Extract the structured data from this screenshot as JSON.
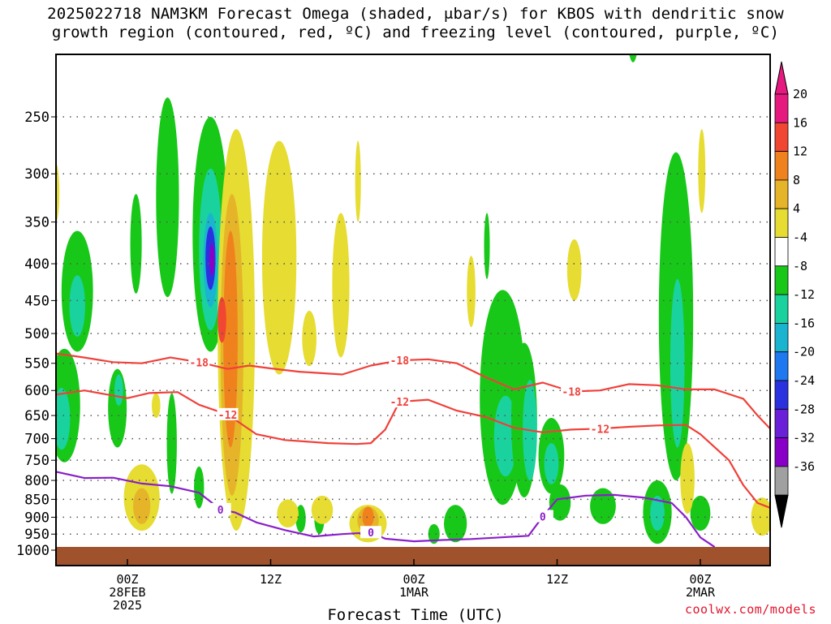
{
  "chart_data": {
    "type": "heatmap",
    "title_line1": "2025022718 NAM3KM Forecast Omega (shaded, μbar/s) for KBOS with dendritic snow",
    "title_line2": "growth region (contoured, red, ºC) and freezing level (contoured, purple, ºC)",
    "xlabel": "Forecast Time (UTC)",
    "credit": "coolwx.com/models",
    "y_axis": {
      "quantity": "pressure",
      "units": "hPa",
      "inverted": true,
      "ticks": [
        250,
        300,
        350,
        400,
        450,
        500,
        550,
        600,
        650,
        700,
        750,
        800,
        850,
        900,
        950,
        1000
      ]
    },
    "x_axis": {
      "range_hours": [
        -5,
        45
      ],
      "ticks": [
        {
          "hour": 0,
          "lines": [
            "00Z",
            "28FEB",
            "2025"
          ]
        },
        {
          "hour": 10,
          "lines": [
            "12Z"
          ]
        },
        {
          "hour": 20,
          "lines": [
            "00Z",
            "1MAR"
          ]
        },
        {
          "hour": 30,
          "lines": [
            "12Z"
          ]
        },
        {
          "hour": 40,
          "lines": [
            "00Z",
            "2MAR"
          ]
        }
      ]
    },
    "colorbar": {
      "levels": [
        -36,
        -32,
        -28,
        -24,
        -20,
        -16,
        -12,
        -8,
        -4,
        4,
        8,
        12,
        16,
        20
      ],
      "colors": [
        "#a0a0a0",
        "#8800c8",
        "#6a1fd8",
        "#2a32e0",
        "#1e78f0",
        "#1ab4d0",
        "#1ad29e",
        "#18c818",
        "#ffffff",
        "#e6dc32",
        "#e6b428",
        "#f0821e",
        "#f04632",
        "#e6197f"
      ]
    },
    "snow_growth_contours": [
      {
        "label": "-12",
        "points": [
          [
            -5,
            608
          ],
          [
            -3,
            600
          ],
          [
            0,
            615
          ],
          [
            1.5,
            605
          ],
          [
            3.5,
            603
          ],
          [
            5,
            628
          ],
          [
            7,
            648
          ],
          [
            9,
            690
          ],
          [
            11,
            703
          ],
          [
            14,
            710
          ],
          [
            16,
            712
          ],
          [
            17,
            710
          ],
          [
            18,
            680
          ],
          [
            19,
            622
          ],
          [
            21,
            618
          ],
          [
            23,
            640
          ],
          [
            25,
            653
          ],
          [
            27,
            676
          ],
          [
            29,
            686
          ],
          [
            31,
            680
          ],
          [
            33,
            678
          ],
          [
            35,
            674
          ],
          [
            37,
            671
          ],
          [
            39,
            670
          ],
          [
            40,
            690
          ],
          [
            42,
            750
          ],
          [
            43,
            812
          ],
          [
            44,
            860
          ],
          [
            45,
            875
          ]
        ]
      },
      {
        "label": "-18",
        "points": [
          [
            -5,
            533
          ],
          [
            -3,
            540
          ],
          [
            -1,
            548
          ],
          [
            1,
            550
          ],
          [
            3,
            540
          ],
          [
            5,
            548
          ],
          [
            7,
            560
          ],
          [
            8.5,
            554
          ],
          [
            10,
            559
          ],
          [
            12,
            565
          ],
          [
            15,
            570
          ],
          [
            17,
            554
          ],
          [
            19,
            545
          ],
          [
            21,
            543
          ],
          [
            23,
            550
          ],
          [
            25,
            575
          ],
          [
            27,
            598
          ],
          [
            29,
            585
          ],
          [
            31,
            602
          ],
          [
            33,
            600
          ],
          [
            35,
            588
          ],
          [
            37,
            590
          ],
          [
            39,
            598
          ],
          [
            41,
            598
          ],
          [
            43,
            616
          ],
          [
            44,
            650
          ],
          [
            45,
            682
          ]
        ]
      }
    ],
    "freezing_level_contour": {
      "label": "0",
      "points": [
        [
          -5,
          778
        ],
        [
          -3,
          794
        ],
        [
          -1,
          793
        ],
        [
          1,
          808
        ],
        [
          3,
          815
        ],
        [
          5,
          832
        ],
        [
          6.5,
          878
        ],
        [
          7.5,
          886
        ],
        [
          9,
          915
        ],
        [
          11,
          938
        ],
        [
          13,
          957
        ],
        [
          15,
          950
        ],
        [
          17,
          945
        ],
        [
          18,
          964
        ],
        [
          20,
          972
        ],
        [
          22,
          968
        ],
        [
          24,
          965
        ],
        [
          26,
          960
        ],
        [
          28,
          955
        ],
        [
          29,
          898
        ],
        [
          30,
          850
        ],
        [
          32,
          840
        ],
        [
          34,
          838
        ],
        [
          36,
          845
        ],
        [
          38,
          860
        ],
        [
          39,
          900
        ],
        [
          40,
          960
        ],
        [
          41,
          990
        ]
      ]
    },
    "omega_regions": [
      {
        "level": -8,
        "center": [
          -3.5,
          445
        ],
        "size": [
          2.2,
          170
        ]
      },
      {
        "level": -12,
        "center": [
          -3.5,
          460
        ],
        "size": [
          1.1,
          90
        ]
      },
      {
        "level": -8,
        "center": [
          -4.4,
          640
        ],
        "size": [
          2.2,
          230
        ]
      },
      {
        "level": -12,
        "center": [
          -4.6,
          660
        ],
        "size": [
          1.2,
          130
        ]
      },
      {
        "level": -8,
        "center": [
          -0.7,
          640
        ],
        "size": [
          1.3,
          160
        ]
      },
      {
        "level": -12,
        "center": [
          -0.6,
          600
        ],
        "size": [
          0.6,
          60
        ]
      },
      {
        "level": -8,
        "center": [
          0.6,
          380
        ],
        "size": [
          0.8,
          120
        ]
      },
      {
        "level": -8,
        "center": [
          2.8,
          340
        ],
        "size": [
          1.6,
          210
        ]
      },
      {
        "level": -8,
        "center": [
          5.8,
          390
        ],
        "size": [
          2.5,
          280
        ]
      },
      {
        "level": -12,
        "center": [
          5.8,
          395
        ],
        "size": [
          1.6,
          200
        ]
      },
      {
        "level": -16,
        "center": [
          5.8,
          400
        ],
        "size": [
          1.0,
          120
        ]
      },
      {
        "level": -24,
        "center": [
          5.8,
          395
        ],
        "size": [
          0.7,
          80
        ]
      },
      {
        "level": -32,
        "center": [
          5.9,
          395
        ],
        "size": [
          0.35,
          40
        ]
      },
      {
        "level": -8,
        "center": [
          3.1,
          720
        ],
        "size": [
          0.7,
          230
        ]
      },
      {
        "level": -8,
        "center": [
          5.0,
          820
        ],
        "size": [
          0.7,
          110
        ]
      },
      {
        "level": -8,
        "center": [
          12.1,
          905
        ],
        "size": [
          0.7,
          80
        ]
      },
      {
        "level": -8,
        "center": [
          13.4,
          905
        ],
        "size": [
          0.7,
          90
        ]
      },
      {
        "level": -8,
        "center": [
          26.2,
          650
        ],
        "size": [
          3.2,
          430
        ]
      },
      {
        "level": -12,
        "center": [
          26.4,
          700
        ],
        "size": [
          1.6,
          180
        ]
      },
      {
        "level": -8,
        "center": [
          22.9,
          920
        ],
        "size": [
          1.6,
          110
        ]
      },
      {
        "level": -8,
        "center": [
          25.1,
          380
        ],
        "size": [
          0.4,
          80
        ]
      },
      {
        "level": -8,
        "center": [
          27.7,
          680
        ],
        "size": [
          1.8,
          330
        ]
      },
      {
        "level": -12,
        "center": [
          28.1,
          690
        ],
        "size": [
          1.0,
          220
        ]
      },
      {
        "level": -8,
        "center": [
          29.6,
          745
        ],
        "size": [
          1.8,
          180
        ]
      },
      {
        "level": -12,
        "center": [
          29.6,
          760
        ],
        "size": [
          1.0,
          100
        ]
      },
      {
        "level": -8,
        "center": [
          33.2,
          870
        ],
        "size": [
          1.8,
          100
        ]
      },
      {
        "level": -8,
        "center": [
          30.2,
          860
        ],
        "size": [
          1.5,
          100
        ]
      },
      {
        "level": -8,
        "center": [
          35.3,
          165
        ],
        "size": [
          1.0,
          90
        ]
      },
      {
        "level": -8,
        "center": [
          38.3,
          540
        ],
        "size": [
          2.4,
          520
        ]
      },
      {
        "level": -12,
        "center": [
          38.4,
          570
        ],
        "size": [
          1.0,
          300
        ]
      },
      {
        "level": -8,
        "center": [
          37.0,
          890
        ],
        "size": [
          2.0,
          180
        ]
      },
      {
        "level": -12,
        "center": [
          37.0,
          890
        ],
        "size": [
          1.0,
          100
        ]
      },
      {
        "level": -8,
        "center": [
          40.0,
          890
        ],
        "size": [
          1.4,
          100
        ]
      },
      {
        "level": -8,
        "center": [
          21.4,
          950
        ],
        "size": [
          0.8,
          60
        ]
      },
      {
        "level": 4,
        "center": [
          1.0,
          850
        ],
        "size": [
          2.5,
          180
        ]
      },
      {
        "level": 8,
        "center": [
          1.0,
          870
        ],
        "size": [
          1.2,
          100
        ]
      },
      {
        "level": 4,
        "center": [
          7.6,
          600
        ],
        "size": [
          2.6,
          680
        ]
      },
      {
        "level": 8,
        "center": [
          7.3,
          580
        ],
        "size": [
          1.6,
          520
        ]
      },
      {
        "level": 12,
        "center": [
          7.2,
          540
        ],
        "size": [
          1.0,
          360
        ]
      },
      {
        "level": 16,
        "center": [
          6.6,
          480
        ],
        "size": [
          0.6,
          70
        ]
      },
      {
        "level": 4,
        "center": [
          10.6,
          420
        ],
        "size": [
          2.4,
          300
        ]
      },
      {
        "level": 4,
        "center": [
          16.8,
          920
        ],
        "size": [
          2.6,
          110
        ]
      },
      {
        "level": 8,
        "center": [
          16.8,
          910
        ],
        "size": [
          1.5,
          80
        ]
      },
      {
        "level": 12,
        "center": [
          16.8,
          900
        ],
        "size": [
          0.8,
          60
        ]
      },
      {
        "level": 4,
        "center": [
          14.9,
          440
        ],
        "size": [
          1.2,
          200
        ]
      },
      {
        "level": 4,
        "center": [
          13.6,
          880
        ],
        "size": [
          1.5,
          80
        ]
      },
      {
        "level": 4,
        "center": [
          16.1,
          310
        ],
        "size": [
          0.4,
          80
        ]
      },
      {
        "level": 4,
        "center": [
          12.7,
          510
        ],
        "size": [
          1.0,
          90
        ]
      },
      {
        "level": 4,
        "center": [
          24.0,
          440
        ],
        "size": [
          0.6,
          100
        ]
      },
      {
        "level": 4,
        "center": [
          31.2,
          410
        ],
        "size": [
          1.0,
          80
        ]
      },
      {
        "level": 4,
        "center": [
          40.1,
          300
        ],
        "size": [
          0.5,
          80
        ]
      },
      {
        "level": 4,
        "center": [
          44.3,
          900
        ],
        "size": [
          1.5,
          110
        ]
      },
      {
        "level": 4,
        "center": [
          -5.0,
          320
        ],
        "size": [
          0.5,
          60
        ]
      },
      {
        "level": 4,
        "center": [
          2.0,
          630
        ],
        "size": [
          0.6,
          50
        ]
      },
      {
        "level": 4,
        "center": [
          39.1,
          800
        ],
        "size": [
          1.0,
          180
        ]
      },
      {
        "level": 4,
        "center": [
          11.2,
          890
        ],
        "size": [
          1.5,
          80
        ]
      }
    ]
  }
}
